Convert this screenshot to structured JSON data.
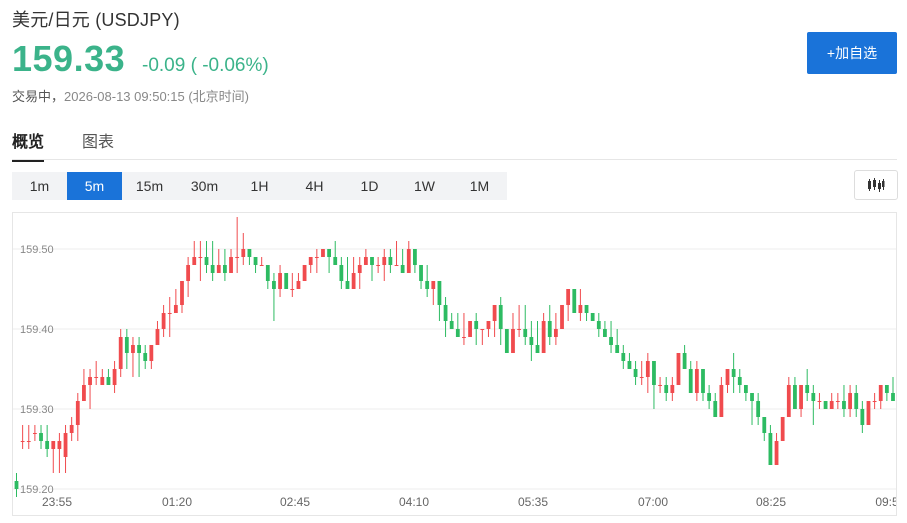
{
  "header": {
    "title": "美元/日元 (USDJPY)",
    "price": "159.33",
    "change": "-0.09 ( -0.06%)",
    "status": "交易中",
    "timestamp": "2026-08-13 09:50:15 (北京时间)",
    "add_watchlist_label": "+加自选"
  },
  "tabs": [
    {
      "label": "概览",
      "active": true
    },
    {
      "label": "图表",
      "active": false
    }
  ],
  "periods": [
    {
      "label": "1m",
      "active": false
    },
    {
      "label": "5m",
      "active": true
    },
    {
      "label": "15m",
      "active": false
    },
    {
      "label": "30m",
      "active": false
    },
    {
      "label": "1H",
      "active": false
    },
    {
      "label": "4H",
      "active": false
    },
    {
      "label": "1D",
      "active": false
    },
    {
      "label": "1W",
      "active": false
    },
    {
      "label": "1M",
      "active": false
    }
  ],
  "colors": {
    "up": "#f04b4e",
    "down": "#2dbb62",
    "accent": "#1a73d9",
    "price": "#3bb38a"
  },
  "chart_type_icon": "candlestick-icon",
  "chart_data": {
    "type": "candlestick",
    "interval": "5m",
    "y_ticks": [
      "159.20",
      "159.30",
      "159.40",
      "159.50"
    ],
    "x_ticks": [
      "23:55",
      "01:20",
      "02:45",
      "04:10",
      "05:35",
      "07:00",
      "08:25",
      "09:5"
    ],
    "ylim": [
      159.195,
      159.535
    ],
    "grid": true,
    "candles": [
      [
        159.21,
        159.2,
        159.22,
        159.19
      ],
      [
        159.26,
        159.26,
        159.28,
        159.25
      ],
      [
        159.26,
        159.26,
        159.28,
        159.25
      ],
      [
        159.27,
        159.27,
        159.28,
        159.26
      ],
      [
        159.27,
        159.26,
        159.28,
        159.25
      ],
      [
        159.26,
        159.25,
        159.28,
        159.24
      ],
      [
        159.25,
        159.26,
        159.26,
        159.22
      ],
      [
        159.25,
        159.26,
        159.27,
        159.22
      ],
      [
        159.24,
        159.27,
        159.28,
        159.22
      ],
      [
        159.27,
        159.28,
        159.29,
        159.26
      ],
      [
        159.28,
        159.31,
        159.32,
        159.26
      ],
      [
        159.31,
        159.33,
        159.35,
        159.31
      ],
      [
        159.33,
        159.34,
        159.35,
        159.3
      ],
      [
        159.34,
        159.34,
        159.36,
        159.33
      ],
      [
        159.33,
        159.34,
        159.35,
        159.33
      ],
      [
        159.34,
        159.33,
        159.35,
        159.33
      ],
      [
        159.33,
        159.35,
        159.36,
        159.32
      ],
      [
        159.35,
        159.39,
        159.4,
        159.34
      ],
      [
        159.39,
        159.37,
        159.4,
        159.35
      ],
      [
        159.37,
        159.38,
        159.39,
        159.34
      ],
      [
        159.38,
        159.37,
        159.39,
        159.34
      ],
      [
        159.37,
        159.36,
        159.38,
        159.35
      ],
      [
        159.36,
        159.38,
        159.38,
        159.35
      ],
      [
        159.38,
        159.4,
        159.41,
        159.38
      ],
      [
        159.4,
        159.42,
        159.43,
        159.39
      ],
      [
        159.42,
        159.42,
        159.44,
        159.39
      ],
      [
        159.42,
        159.43,
        159.45,
        159.42
      ],
      [
        159.43,
        159.46,
        159.46,
        159.42
      ],
      [
        159.46,
        159.48,
        159.49,
        159.44
      ],
      [
        159.48,
        159.49,
        159.51,
        159.48
      ],
      [
        159.49,
        159.49,
        159.51,
        159.46
      ],
      [
        159.49,
        159.48,
        159.51,
        159.47
      ],
      [
        159.48,
        159.47,
        159.51,
        159.46
      ],
      [
        159.47,
        159.48,
        159.5,
        159.47
      ],
      [
        159.48,
        159.47,
        159.5,
        159.46
      ],
      [
        159.47,
        159.49,
        159.5,
        159.47
      ],
      [
        159.49,
        159.49,
        159.54,
        159.47
      ],
      [
        159.49,
        159.5,
        159.52,
        159.48
      ],
      [
        159.5,
        159.49,
        159.5,
        159.48
      ],
      [
        159.49,
        159.48,
        159.49,
        159.47
      ],
      [
        159.48,
        159.48,
        159.49,
        159.48
      ],
      [
        159.48,
        159.46,
        159.48,
        159.45
      ],
      [
        159.46,
        159.45,
        159.47,
        159.41
      ],
      [
        159.45,
        159.47,
        159.48,
        159.44
      ],
      [
        159.47,
        159.45,
        159.47,
        159.45
      ],
      [
        159.45,
        159.45,
        159.47,
        159.44
      ],
      [
        159.45,
        159.46,
        159.47,
        159.45
      ],
      [
        159.46,
        159.48,
        159.48,
        159.46
      ],
      [
        159.48,
        159.49,
        159.49,
        159.47
      ],
      [
        159.49,
        159.49,
        159.5,
        159.47
      ],
      [
        159.49,
        159.5,
        159.5,
        159.49
      ],
      [
        159.5,
        159.49,
        159.5,
        159.47
      ],
      [
        159.49,
        159.48,
        159.51,
        159.48
      ],
      [
        159.48,
        159.46,
        159.49,
        159.45
      ],
      [
        159.46,
        159.45,
        159.49,
        159.45
      ],
      [
        159.45,
        159.47,
        159.49,
        159.45
      ],
      [
        159.47,
        159.48,
        159.49,
        159.45
      ],
      [
        159.48,
        159.49,
        159.5,
        159.48
      ],
      [
        159.49,
        159.48,
        159.49,
        159.46
      ],
      [
        159.48,
        159.48,
        159.49,
        159.47
      ],
      [
        159.48,
        159.49,
        159.5,
        159.46
      ],
      [
        159.49,
        159.48,
        159.5,
        159.47
      ],
      [
        159.48,
        159.48,
        159.51,
        159.48
      ],
      [
        159.48,
        159.47,
        159.5,
        159.47
      ],
      [
        159.47,
        159.5,
        159.51,
        159.47
      ],
      [
        159.5,
        159.48,
        159.5,
        159.47
      ],
      [
        159.48,
        159.46,
        159.48,
        159.45
      ],
      [
        159.46,
        159.45,
        159.48,
        159.44
      ],
      [
        159.45,
        159.46,
        159.46,
        159.43
      ],
      [
        159.46,
        159.43,
        159.46,
        159.41
      ],
      [
        159.43,
        159.41,
        159.44,
        159.39
      ],
      [
        159.41,
        159.4,
        159.42,
        159.4
      ],
      [
        159.4,
        159.39,
        159.42,
        159.39
      ],
      [
        159.39,
        159.39,
        159.42,
        159.38
      ],
      [
        159.39,
        159.41,
        159.41,
        159.39
      ],
      [
        159.41,
        159.4,
        159.42,
        159.38
      ],
      [
        159.4,
        159.4,
        159.4,
        159.38
      ],
      [
        159.4,
        159.41,
        159.41,
        159.39
      ],
      [
        159.41,
        159.43,
        159.43,
        159.39
      ],
      [
        159.43,
        159.4,
        159.44,
        159.38
      ],
      [
        159.4,
        159.37,
        159.4,
        159.37
      ],
      [
        159.37,
        159.4,
        159.42,
        159.37
      ],
      [
        159.4,
        159.4,
        159.43,
        159.39
      ],
      [
        159.4,
        159.39,
        159.43,
        159.38
      ],
      [
        159.39,
        159.38,
        159.41,
        159.36
      ],
      [
        159.38,
        159.37,
        159.41,
        159.37
      ],
      [
        159.37,
        159.41,
        159.42,
        159.37
      ],
      [
        159.41,
        159.39,
        159.43,
        159.38
      ],
      [
        159.39,
        159.4,
        159.42,
        159.38
      ],
      [
        159.4,
        159.43,
        159.43,
        159.4
      ],
      [
        159.43,
        159.45,
        159.45,
        159.41
      ],
      [
        159.45,
        159.42,
        159.45,
        159.42
      ],
      [
        159.42,
        159.43,
        159.45,
        159.41
      ],
      [
        159.43,
        159.42,
        159.43,
        159.41
      ],
      [
        159.42,
        159.41,
        159.42,
        159.41
      ],
      [
        159.41,
        159.4,
        159.42,
        159.39
      ],
      [
        159.4,
        159.39,
        159.41,
        159.39
      ],
      [
        159.39,
        159.38,
        159.41,
        159.37
      ],
      [
        159.38,
        159.37,
        159.4,
        159.37
      ],
      [
        159.37,
        159.36,
        159.38,
        159.35
      ],
      [
        159.36,
        159.35,
        159.37,
        159.35
      ],
      [
        159.35,
        159.34,
        159.36,
        159.33
      ],
      [
        159.34,
        159.34,
        159.36,
        159.33
      ],
      [
        159.34,
        159.36,
        159.37,
        159.32
      ],
      [
        159.36,
        159.33,
        159.36,
        159.3
      ],
      [
        159.33,
        159.33,
        159.34,
        159.32
      ],
      [
        159.33,
        159.32,
        159.34,
        159.31
      ],
      [
        159.32,
        159.33,
        159.34,
        159.31
      ],
      [
        159.33,
        159.37,
        159.37,
        159.33
      ],
      [
        159.37,
        159.35,
        159.38,
        159.35
      ],
      [
        159.35,
        159.32,
        159.36,
        159.32
      ],
      [
        159.32,
        159.35,
        159.36,
        159.31
      ],
      [
        159.35,
        159.32,
        159.35,
        159.31
      ],
      [
        159.32,
        159.31,
        159.33,
        159.3
      ],
      [
        159.31,
        159.29,
        159.32,
        159.29
      ],
      [
        159.29,
        159.33,
        159.34,
        159.29
      ],
      [
        159.33,
        159.35,
        159.35,
        159.32
      ],
      [
        159.35,
        159.34,
        159.37,
        159.32
      ],
      [
        159.34,
        159.33,
        159.35,
        159.32
      ],
      [
        159.33,
        159.32,
        159.33,
        159.31
      ],
      [
        159.32,
        159.31,
        159.32,
        159.28
      ],
      [
        159.31,
        159.29,
        159.32,
        159.28
      ],
      [
        159.29,
        159.27,
        159.29,
        159.26
      ],
      [
        159.27,
        159.23,
        159.28,
        159.23
      ],
      [
        159.23,
        159.26,
        159.27,
        159.23
      ],
      [
        159.26,
        159.29,
        159.29,
        159.26
      ],
      [
        159.29,
        159.33,
        159.34,
        159.29
      ],
      [
        159.33,
        159.3,
        159.34,
        159.3
      ],
      [
        159.3,
        159.33,
        159.33,
        159.29
      ],
      [
        159.33,
        159.32,
        159.35,
        159.31
      ],
      [
        159.32,
        159.31,
        159.33,
        159.28
      ],
      [
        159.31,
        159.31,
        159.32,
        159.3
      ],
      [
        159.31,
        159.3,
        159.31,
        159.3
      ],
      [
        159.3,
        159.31,
        159.32,
        159.3
      ],
      [
        159.31,
        159.31,
        159.32,
        159.3
      ],
      [
        159.31,
        159.3,
        159.33,
        159.29
      ],
      [
        159.3,
        159.32,
        159.33,
        159.29
      ],
      [
        159.32,
        159.3,
        159.33,
        159.29
      ],
      [
        159.3,
        159.28,
        159.31,
        159.27
      ],
      [
        159.28,
        159.31,
        159.31,
        159.28
      ],
      [
        159.31,
        159.31,
        159.32,
        159.3
      ],
      [
        159.31,
        159.33,
        159.33,
        159.3
      ],
      [
        159.33,
        159.32,
        159.33,
        159.31
      ],
      [
        159.32,
        159.31,
        159.34,
        159.31
      ]
    ]
  }
}
